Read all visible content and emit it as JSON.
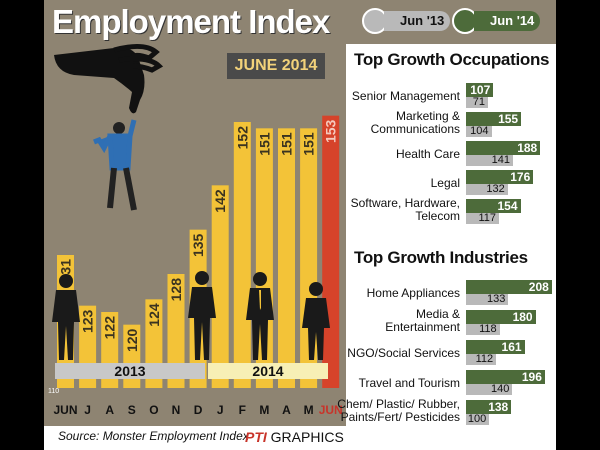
{
  "title": "Employment Index",
  "date_label": "JUNE 2014",
  "legend": [
    {
      "label": "Jun '13",
      "color": "#b9b9b9"
    },
    {
      "label": "Jun '14",
      "color": "#4d6b3a"
    }
  ],
  "chart_data": [
    {
      "type": "bar",
      "title": "Employment Index",
      "categories": [
        "JUN",
        "J",
        "A",
        "S",
        "O",
        "N",
        "D",
        "J",
        "F",
        "M",
        "A",
        "M",
        "JUN"
      ],
      "values": [
        131,
        123,
        122,
        120,
        124,
        128,
        135,
        142,
        152,
        151,
        151,
        151,
        153
      ],
      "years": [
        "2013",
        "2014"
      ],
      "axis_min_label": "110",
      "ylim": [
        110,
        160
      ],
      "bar_color": "#f3c338",
      "highlight_color": "#d6432a"
    },
    {
      "type": "bar",
      "title": "Top Growth Occupations",
      "categories": [
        "Senior Management",
        "Marketing & Communications",
        "Health Care",
        "Legal",
        "Software, Hardware, Telecom"
      ],
      "series": [
        {
          "name": "Jun '14",
          "values": [
            107,
            155,
            188,
            176,
            154
          ]
        },
        {
          "name": "Jun '13",
          "values": [
            71,
            104,
            141,
            132,
            117
          ]
        }
      ]
    },
    {
      "type": "bar",
      "title": "Top Growth Industries",
      "categories": [
        "Home Appliances",
        "Media & Entertainment",
        "NGO/Social Services",
        "Travel and Tourism",
        "Chem/ Plastic/ Rubber, Paints/Fert/ Pesticides"
      ],
      "series": [
        {
          "name": "Jun '14",
          "values": [
            208,
            180,
            161,
            196,
            138
          ]
        },
        {
          "name": "Jun '13",
          "values": [
            133,
            118,
            112,
            140,
            100
          ]
        }
      ]
    }
  ],
  "occupations_title": "Top Growth Occupations",
  "occupations": [
    {
      "label": [
        "Senior Management"
      ],
      "v14": 107,
      "v13": 71
    },
    {
      "label": [
        "Marketing &",
        "Communications"
      ],
      "v14": 155,
      "v13": 104
    },
    {
      "label": [
        "Health Care"
      ],
      "v14": 188,
      "v13": 141
    },
    {
      "label": [
        "Legal"
      ],
      "v14": 176,
      "v13": 132
    },
    {
      "label": [
        "Software, Hardware,",
        "Telecom"
      ],
      "v14": 154,
      "v13": 117
    }
  ],
  "industries_title": "Top Growth Industries",
  "industries": [
    {
      "label": [
        "Home Appliances"
      ],
      "v14": 208,
      "v13": 133
    },
    {
      "label": [
        "Media &",
        "Entertainment"
      ],
      "v14": 180,
      "v13": 118
    },
    {
      "label": [
        "NGO/Social Services"
      ],
      "v14": 161,
      "v13": 112
    },
    {
      "label": [
        "Travel and Tourism"
      ],
      "v14": 196,
      "v13": 140
    },
    {
      "label": [
        "Chem/ Plastic/ Rubber,",
        "Paints/Fert/ Pesticides"
      ],
      "v14": 138,
      "v13": 100
    }
  ],
  "source": "Source: Monster Employment Index",
  "credit_logo": "PTI",
  "credit_text": "GRAPHICS"
}
